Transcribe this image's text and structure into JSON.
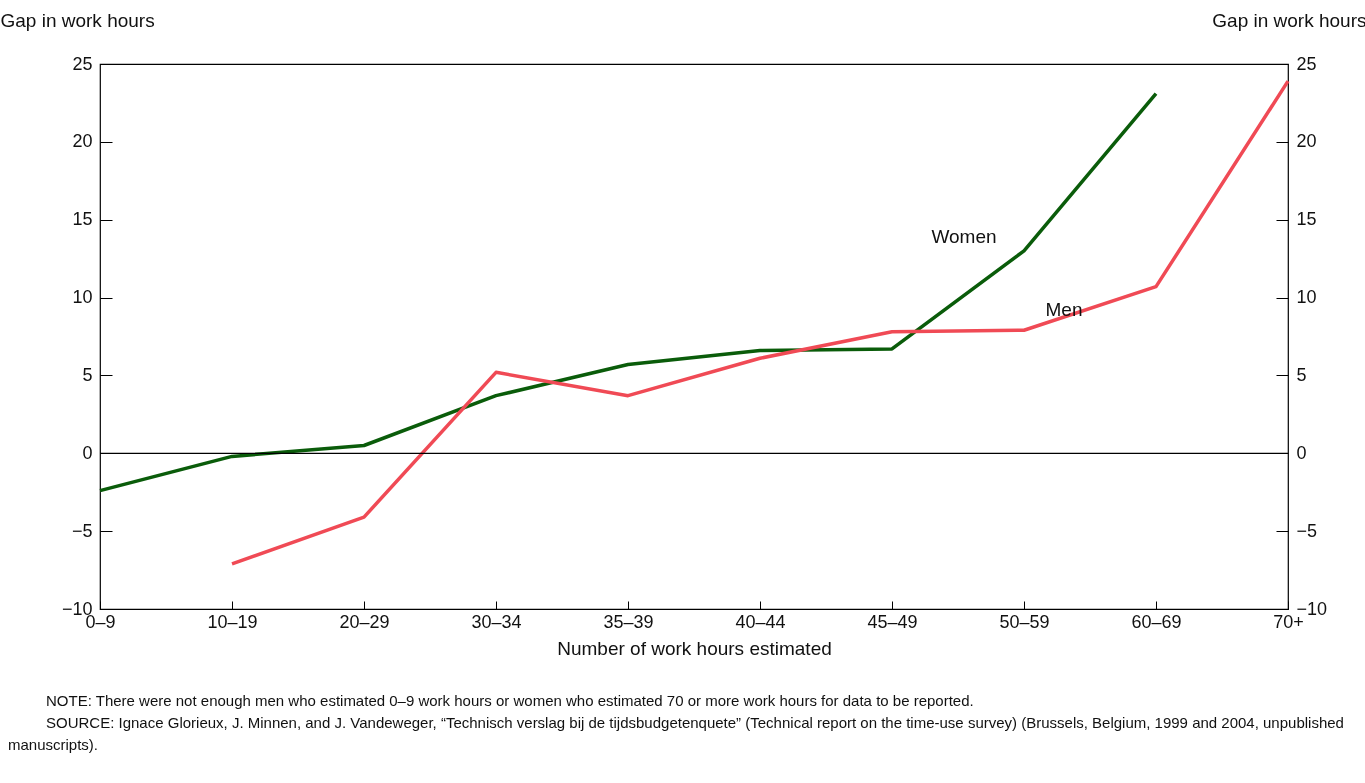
{
  "chart_data": {
    "type": "line",
    "xlabel": "Number of work hours estimated",
    "ylabel": "Gap in work hours",
    "y2label": "Gap in work hours",
    "categories": [
      "0–9",
      "10–19",
      "20–29",
      "30–34",
      "35–39",
      "40–44",
      "45–49",
      "50–59",
      "60–69",
      "70+"
    ],
    "series": [
      {
        "name": "Women",
        "color": "#0a5c0a",
        "values": [
          -2.4,
          -0.2,
          0.5,
          3.7,
          5.7,
          6.6,
          6.7,
          13.0,
          23.1,
          null
        ]
      },
      {
        "name": "Men",
        "color": "#f04a55",
        "values": [
          null,
          -7.1,
          -4.1,
          5.2,
          3.7,
          6.1,
          7.8,
          7.9,
          10.7,
          23.9
        ]
      }
    ],
    "ylim": [
      -10,
      25
    ],
    "yticks": [
      -10,
      -5,
      0,
      5,
      10,
      15,
      20,
      25
    ],
    "y2lim": [
      -10,
      25
    ],
    "y2ticks": [
      -10,
      -5,
      0,
      5,
      10,
      15,
      20,
      25
    ],
    "ref_lines": [
      {
        "axis": "y",
        "value": 0
      }
    ],
    "grid": false,
    "legend": false,
    "annotations": [
      "NOTE:    There were not enough men who estimated 0–9 work hours or women who estimated 70 or more work hours for data to be reported.",
      "SOURCE:    Ignace Glorieux, J. Minnen, and J. Vandeweger, “Technisch verslag bij de tijdsbudgetenquete” (Technical report on the time-use survey) (Brussels, Belgium, 1999 and 2004, unpublished manuscripts)."
    ]
  }
}
